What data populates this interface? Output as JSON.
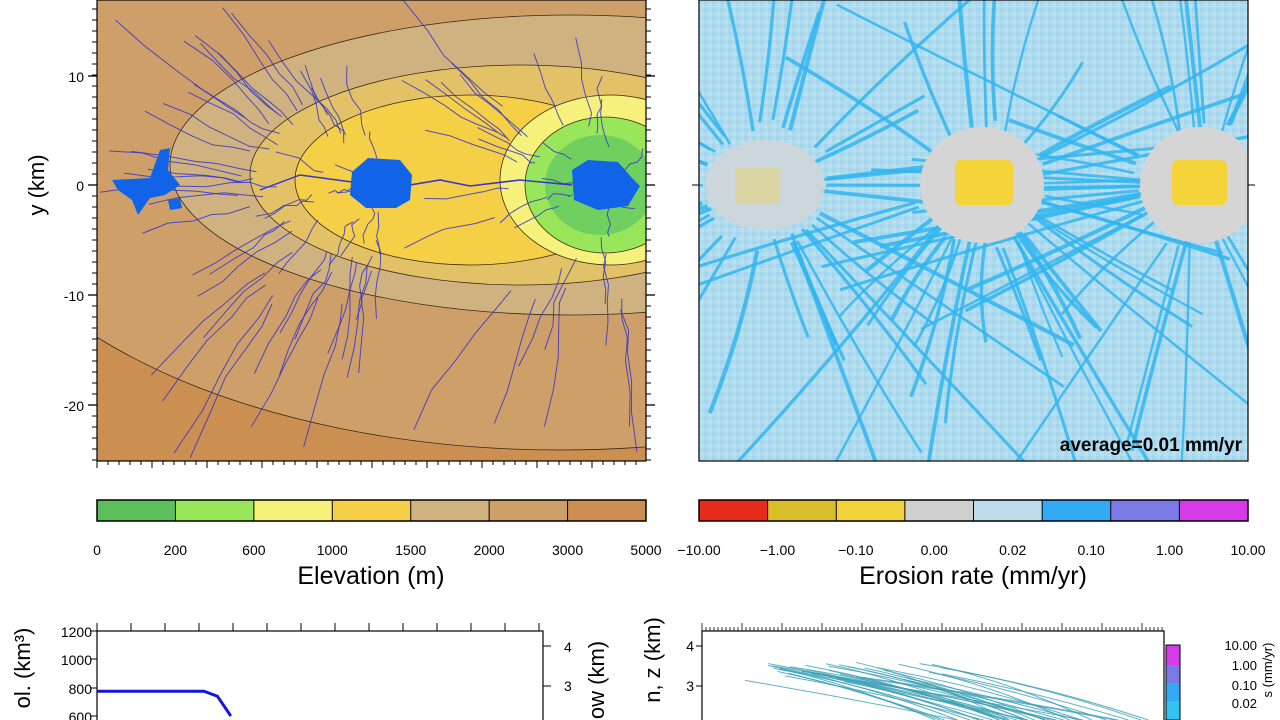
{
  "chart_data": [
    {
      "type": "heatmap",
      "ylabel": "y (km)",
      "yticks": [
        10,
        0,
        -10,
        -20
      ],
      "colorbar_label": "Elevation (m)",
      "colorbar_ticks": [
        "0",
        "200",
        "600",
        "1000",
        "1500",
        "2000",
        "3000",
        "5000"
      ],
      "colorbar_colors": [
        "#5cbf5c",
        "#9ae65a",
        "#f5f17a",
        "#f5cf46",
        "#cfb27f",
        "#cf9f6a",
        "#cc8f52"
      ],
      "lakes_color": "#1164e8",
      "rivers_color": "#3636c8"
    },
    {
      "type": "heatmap",
      "annotation": "average=0.01 mm/yr",
      "colorbar_label": "Erosion rate (mm/yr)",
      "colorbar_ticks": [
        "−10.00",
        "−1.00",
        "−0.10",
        "0.00",
        "0.02",
        "0.10",
        "1.00",
        "10.00"
      ],
      "background_color": "#aedcee",
      "channel_color": "#33b5f0",
      "neutral_color": "#d5d5d5",
      "deposit_color": "#f5d43a"
    },
    {
      "type": "line",
      "ylabel_left": "ol. (km³)",
      "ylabel_right": "ow (km)",
      "yticks_left": [
        "1200",
        "1000",
        "800",
        "600"
      ],
      "yticks_right": [
        "4",
        "3"
      ],
      "ylim_left": [
        600,
        1200
      ],
      "series": [
        {
          "x": [
            0,
            0.24,
            0.27,
            0.3
          ],
          "y": [
            775,
            775,
            740,
            600
          ]
        }
      ],
      "line_color": "#1515d8"
    },
    {
      "type": "line",
      "ylabel": "n, z (km)",
      "yticks": [
        "4",
        "3"
      ],
      "colorbar_ticks": [
        "10.00",
        "1.00",
        "0.10",
        "0.02"
      ],
      "colorbar_label": "s (mm/yr)",
      "line_color": "#3a9fb5"
    }
  ]
}
